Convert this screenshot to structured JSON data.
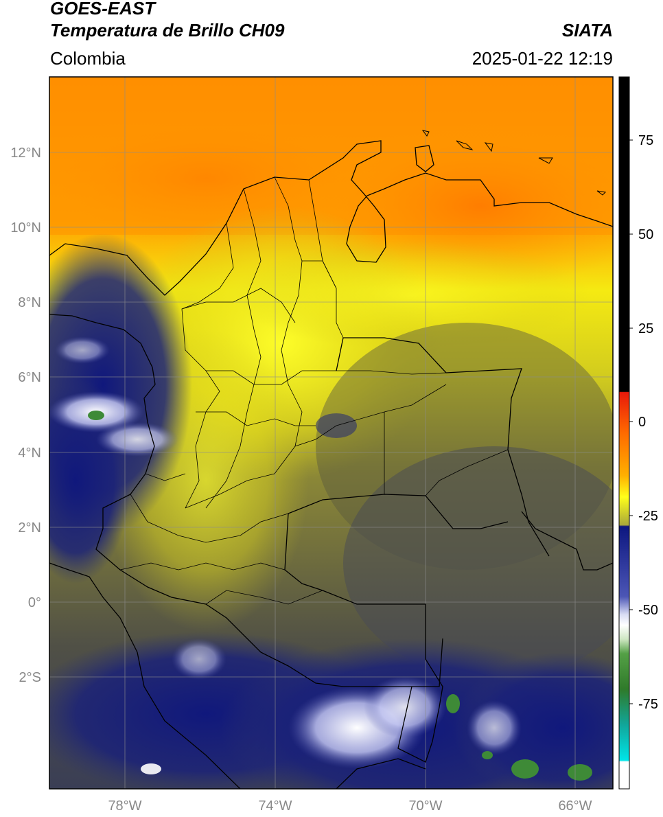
{
  "header": {
    "title_line1": "GOES-EAST",
    "title_line2": "Temperatura de Brillo CH09",
    "brand": "SIATA",
    "region": "Colombia",
    "datetime": "2025-01-22 12:19"
  },
  "axes": {
    "lat_labels": [
      "12°N",
      "10°N",
      "8°N",
      "6°N",
      "4°N",
      "2°N",
      "0°",
      "2°S"
    ],
    "lon_labels": [
      "78°W",
      "74°W",
      "70°W",
      "66°W"
    ]
  },
  "colorbar": {
    "tick_labels": [
      "75",
      "50",
      "25",
      "0",
      "-25",
      "-50",
      "-75"
    ],
    "colors": {
      "black": "#000000",
      "red": "#e8190a",
      "orange": "#ff8a00",
      "yellow": "#ffff1a",
      "olive": "#5a5a38",
      "navy": "#0d1780",
      "white": "#ffffff",
      "green": "#2f7a2a",
      "teal": "#11c4c0",
      "cyan": "#00e5e8"
    }
  },
  "map_colors": {
    "sea_top": "#ff8f00",
    "warm_yellow": "#f6ef14",
    "olive": "#6b6b3c",
    "dark_olive": "#4e4e3c",
    "navy": "#1b2278",
    "cloud_white": "#dfe3ff",
    "cloud_green": "#3e8a37"
  }
}
